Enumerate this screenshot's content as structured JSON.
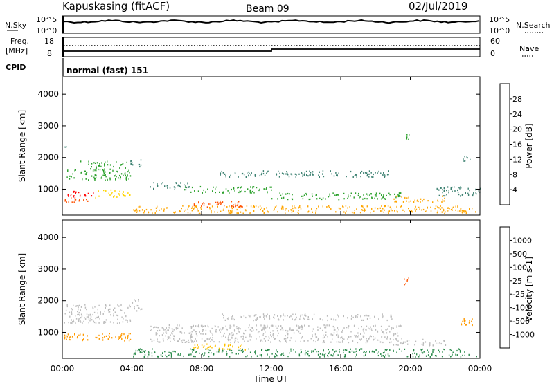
{
  "header": {
    "station": "Kapuskasing (fitACF)",
    "beam": "Beam 09",
    "date": "02/Jul/2019"
  },
  "noise_panel": {
    "left_label": "N.Sky",
    "right_label": "N.Search",
    "left_ticks": [
      "10^5",
      "10^0"
    ],
    "right_ticks": [
      "10^5",
      "10^0"
    ]
  },
  "freq_panel": {
    "left_label_line1": "Freq.",
    "left_label_line2": "[MHz]",
    "left_ticks": [
      "18",
      "8"
    ],
    "right_label": "Nave",
    "right_ticks": [
      "60",
      "0"
    ]
  },
  "cpid": {
    "label": "CPID",
    "mode": "normal (fast) 151"
  },
  "x_axis": {
    "label": "Time UT",
    "ticks": [
      "00:00",
      "04:00",
      "08:00",
      "12:00",
      "16:00",
      "20:00",
      "00:00"
    ]
  },
  "colors": {
    "power": [
      "#0000ff",
      "#1f4faa",
      "#3b8070",
      "#2aa02a",
      "#ffd400",
      "#ffa500",
      "#ff5000",
      "#ff0000"
    ],
    "velocity": [
      "#0000dd",
      "#2060c0",
      "#2a8a4a",
      "#60cc40",
      "#bbbbbb",
      "#ffc000",
      "#ff9900",
      "#ff5500",
      "#ff0000"
    ]
  },
  "chart_data": [
    {
      "type": "heatmap",
      "ylabel": "Slant Range [km]",
      "xlabel": "",
      "yticks": [
        "1000",
        "2000",
        "3000",
        "4000"
      ],
      "ylim": [
        180,
        4550
      ],
      "xlim": [
        0,
        24
      ],
      "colorbar": {
        "label": "Power [dB]",
        "ticks": [
          "4",
          "8",
          "12",
          "16",
          "20",
          "24",
          "28"
        ],
        "range": [
          0,
          32
        ]
      },
      "regions": [
        {
          "t0": 0.1,
          "t1": 1.8,
          "r0": 750,
          "r1": 950,
          "value": 28
        },
        {
          "t0": 0.1,
          "t1": 1.5,
          "r0": 600,
          "r1": 750,
          "value": 24
        },
        {
          "t0": 1.8,
          "t1": 3.9,
          "r0": 750,
          "r1": 1000,
          "value": 18
        },
        {
          "t0": 0.1,
          "t1": 0.8,
          "r0": 1300,
          "r1": 1650,
          "value": 14
        },
        {
          "t0": 1.0,
          "t1": 3.9,
          "r0": 1300,
          "r1": 1900,
          "value": 14
        },
        {
          "t0": 3.9,
          "t1": 4.6,
          "r0": 1700,
          "r1": 2000,
          "value": 8
        },
        {
          "t0": 0.0,
          "t1": 0.4,
          "r0": 2300,
          "r1": 2500,
          "value": 8
        },
        {
          "t0": 4.0,
          "t1": 23.8,
          "r0": 250,
          "r1": 500,
          "value": 20
        },
        {
          "t0": 7.5,
          "t1": 10.5,
          "r0": 450,
          "r1": 650,
          "value": 24
        },
        {
          "t0": 5.0,
          "t1": 7.5,
          "r0": 1000,
          "r1": 1250,
          "value": 8
        },
        {
          "t0": 7.0,
          "t1": 12.0,
          "r0": 900,
          "r1": 1100,
          "value": 12
        },
        {
          "t0": 12.0,
          "t1": 19.5,
          "r0": 700,
          "r1": 900,
          "value": 12
        },
        {
          "t0": 9.0,
          "t1": 19.0,
          "r0": 1400,
          "r1": 1600,
          "value": 8
        },
        {
          "t0": 19.0,
          "t1": 22.0,
          "r0": 600,
          "r1": 800,
          "value": 20
        },
        {
          "t0": 21.5,
          "t1": 24.0,
          "r0": 800,
          "r1": 1100,
          "value": 10
        },
        {
          "t0": 19.6,
          "t1": 19.9,
          "r0": 2500,
          "r1": 2800,
          "value": 14
        },
        {
          "t0": 23.0,
          "t1": 23.5,
          "r0": 1900,
          "r1": 2100,
          "value": 8
        }
      ]
    },
    {
      "type": "heatmap",
      "ylabel": "Slant Range [km]",
      "xlabel": "Time UT",
      "yticks": [
        "1000",
        "2000",
        "3000",
        "4000"
      ],
      "ylim": [
        180,
        4550
      ],
      "xlim": [
        0,
        24
      ],
      "colorbar": {
        "label": "Velocity [m s-1]",
        "ticks": [
          "1000",
          "500",
          "100",
          "25",
          "-25",
          "-100",
          "-500",
          "-1000"
        ],
        "range": [
          -1200,
          1200
        ]
      },
      "regions": [
        {
          "t0": 0.1,
          "t1": 3.9,
          "r0": 750,
          "r1": 1000,
          "value": -150
        },
        {
          "t0": 0.1,
          "t1": 3.9,
          "r0": 1300,
          "r1": 1900,
          "value": 0
        },
        {
          "t0": 3.9,
          "t1": 4.6,
          "r0": 1700,
          "r1": 2100,
          "value": 0
        },
        {
          "t0": 4.0,
          "t1": 23.8,
          "r0": 250,
          "r1": 500,
          "value": 150
        },
        {
          "t0": 7.5,
          "t1": 10.5,
          "r0": 450,
          "r1": 650,
          "value": -40
        },
        {
          "t0": 5.0,
          "t1": 19.5,
          "r0": 700,
          "r1": 1250,
          "value": 0
        },
        {
          "t0": 9.0,
          "t1": 19.0,
          "r0": 1400,
          "r1": 1600,
          "value": 0
        },
        {
          "t0": 19.0,
          "t1": 22.0,
          "r0": 600,
          "r1": 800,
          "value": 0
        },
        {
          "t0": 22.8,
          "t1": 23.6,
          "r0": 1200,
          "r1": 1500,
          "value": -150
        },
        {
          "t0": 19.6,
          "t1": 19.9,
          "r0": 2500,
          "r1": 2800,
          "value": -600
        }
      ]
    }
  ]
}
